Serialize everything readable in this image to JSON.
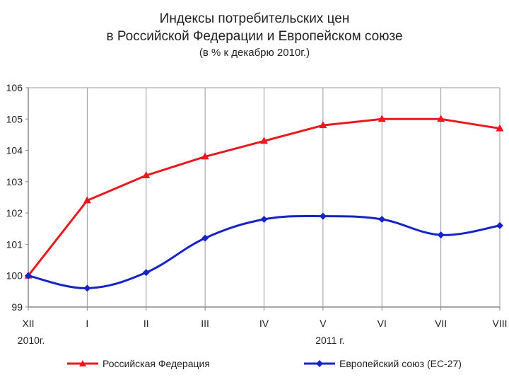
{
  "chart_data": {
    "type": "line",
    "title_line1": "Индексы потребительских цен",
    "title_line2": "в Российской Федерации и Европейском союзе",
    "subtitle": "(в % к декабрю 2010г.)",
    "categories": [
      "XII",
      "I",
      "II",
      "III",
      "IV",
      "V",
      "VI",
      "VII",
      "VIII"
    ],
    "year_labels": [
      {
        "text": "2010г.",
        "category_index": 0
      },
      {
        "text": "2011 г.",
        "category_index": 5
      }
    ],
    "ylim": [
      99,
      106
    ],
    "yticks": [
      99,
      100,
      101,
      102,
      103,
      104,
      105,
      106
    ],
    "grid": "vertical",
    "legend_position": "bottom",
    "series": [
      {
        "name": "Российская Федерация",
        "color": "#e8191f",
        "marker": "triangle",
        "smooth": false,
        "values": [
          100.0,
          102.4,
          103.2,
          103.8,
          104.3,
          104.8,
          105.0,
          105.0,
          104.7
        ]
      },
      {
        "name": "Европейский союз (ЕС-27)",
        "color": "#1523c7",
        "marker": "diamond",
        "smooth": true,
        "values": [
          100.0,
          99.6,
          100.1,
          101.2,
          101.8,
          101.9,
          101.8,
          101.3,
          101.6
        ]
      }
    ]
  }
}
